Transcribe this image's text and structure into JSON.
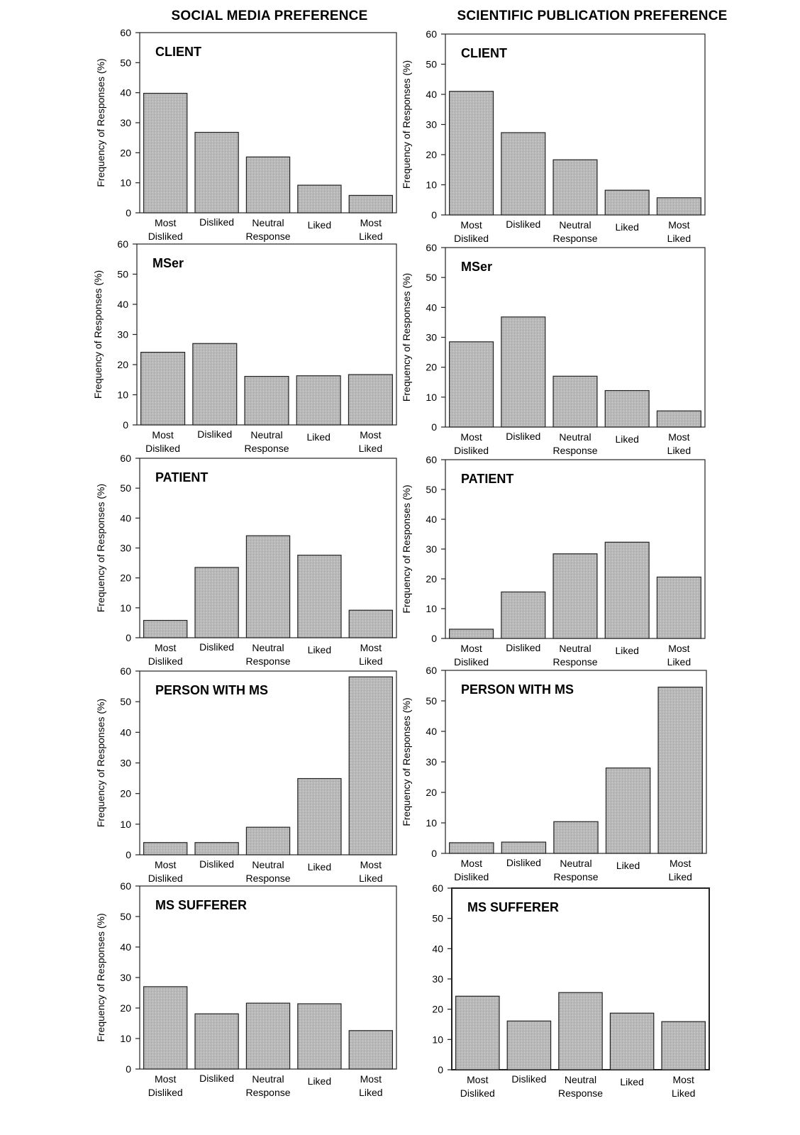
{
  "column_titles": [
    "SOCIAL MEDIA PREFERENCE",
    "SCIENTIFIC PUBLICATION PREFERENCE"
  ],
  "chart_data": [
    {
      "type": "bar",
      "column": "SOCIAL MEDIA PREFERENCE",
      "title": "CLIENT",
      "categories": [
        "Most Disliked",
        "Disliked",
        "Neutral Response",
        "Liked",
        "Most Liked"
      ],
      "values": [
        39.8,
        26.8,
        18.6,
        9.2,
        5.8
      ],
      "ylabel": "Frequency of Responses (%)",
      "ylim": [
        0,
        60
      ],
      "yticks": [
        0,
        10,
        20,
        30,
        40,
        50,
        60
      ]
    },
    {
      "type": "bar",
      "column": "SCIENTIFIC PUBLICATION PREFERENCE",
      "title": "CLIENT",
      "categories": [
        "Most Disliked",
        "Disliked",
        "Neutral Response",
        "Liked",
        "Most Liked"
      ],
      "values": [
        41.0,
        27.3,
        18.3,
        8.2,
        5.7
      ],
      "ylabel": "Frequency of Responses (%)",
      "ylim": [
        0,
        60
      ],
      "yticks": [
        0,
        10,
        20,
        30,
        40,
        50,
        60
      ]
    },
    {
      "type": "bar",
      "column": "SOCIAL MEDIA PREFERENCE",
      "title": "MSer",
      "categories": [
        "Most Disliked",
        "Disliked",
        "Neutral Response",
        "Liked",
        "Most Liked"
      ],
      "values": [
        24.1,
        27.0,
        16.1,
        16.3,
        16.7
      ],
      "ylabel": "Frequency of Responses (%)",
      "ylim": [
        0,
        60
      ],
      "yticks": [
        0,
        10,
        20,
        30,
        40,
        50,
        60
      ]
    },
    {
      "type": "bar",
      "column": "SCIENTIFIC PUBLICATION PREFERENCE",
      "title": "MSer",
      "categories": [
        "Most Disliked",
        "Disliked",
        "Neutral Response",
        "Liked",
        "Most Liked"
      ],
      "values": [
        28.5,
        36.8,
        17.0,
        12.2,
        5.4
      ],
      "ylabel": "Frequency of Responses (%)",
      "ylim": [
        0,
        60
      ],
      "yticks": [
        0,
        10,
        20,
        30,
        40,
        50,
        60
      ]
    },
    {
      "type": "bar",
      "column": "SOCIAL MEDIA PREFERENCE",
      "title": "PATIENT",
      "categories": [
        "Most Disliked",
        "Disliked",
        "Neutral Response",
        "Liked",
        "Most Liked"
      ],
      "values": [
        5.8,
        23.5,
        34.1,
        27.6,
        9.2
      ],
      "ylabel": "Frequency of Responses (%)",
      "ylim": [
        0,
        60
      ],
      "yticks": [
        0,
        10,
        20,
        30,
        40,
        50,
        60
      ]
    },
    {
      "type": "bar",
      "column": "SCIENTIFIC PUBLICATION PREFERENCE",
      "title": "PATIENT",
      "categories": [
        "Most Disliked",
        "Disliked",
        "Neutral Response",
        "Liked",
        "Most Liked"
      ],
      "values": [
        3.1,
        15.6,
        28.4,
        32.3,
        20.6
      ],
      "ylabel": "Frequency of Responses (%)",
      "ylim": [
        0,
        60
      ],
      "yticks": [
        0,
        10,
        20,
        30,
        40,
        50,
        60
      ]
    },
    {
      "type": "bar",
      "column": "SOCIAL MEDIA PREFERENCE",
      "title": "PERSON WITH MS",
      "categories": [
        "Most Disliked",
        "Disliked",
        "Neutral Response",
        "Liked",
        "Most Liked"
      ],
      "values": [
        4.0,
        4.0,
        9.0,
        24.9,
        58.1
      ],
      "ylabel": "Frequency of Responses (%)",
      "ylim": [
        0,
        60
      ],
      "yticks": [
        0,
        10,
        20,
        30,
        40,
        50,
        60
      ]
    },
    {
      "type": "bar",
      "column": "SCIENTIFIC PUBLICATION PREFERENCE",
      "title": "PERSON WITH MS",
      "categories": [
        "Most Disliked",
        "Disliked",
        "Neutral Response",
        "Liked",
        "Most Liked"
      ],
      "values": [
        3.5,
        3.7,
        10.4,
        28.0,
        54.5
      ],
      "ylabel": "Frequency of Responses (%)",
      "ylim": [
        0,
        60
      ],
      "yticks": [
        0,
        10,
        20,
        30,
        40,
        50,
        60
      ]
    },
    {
      "type": "bar",
      "column": "SOCIAL MEDIA PREFERENCE",
      "title": "MS SUFFERER",
      "categories": [
        "Most Disliked",
        "Disliked",
        "Neutral Response",
        "Liked",
        "Most Liked"
      ],
      "values": [
        27.0,
        18.1,
        21.6,
        21.4,
        12.6
      ],
      "ylabel": "Frequency of Responses (%)",
      "ylim": [
        0,
        60
      ],
      "yticks": [
        0,
        10,
        20,
        30,
        40,
        50,
        60
      ]
    },
    {
      "type": "bar",
      "column": "SCIENTIFIC PUBLICATION PREFERENCE",
      "title": "MS SUFFERER",
      "categories": [
        "Most Disliked",
        "Disliked",
        "Neutral Response",
        "Liked",
        "Most Liked"
      ],
      "values": [
        24.3,
        16.1,
        25.5,
        18.7,
        15.9
      ],
      "ylabel": "",
      "ylim": [
        0,
        60
      ],
      "yticks": [
        0,
        10,
        20,
        30,
        40,
        50,
        60
      ]
    }
  ]
}
